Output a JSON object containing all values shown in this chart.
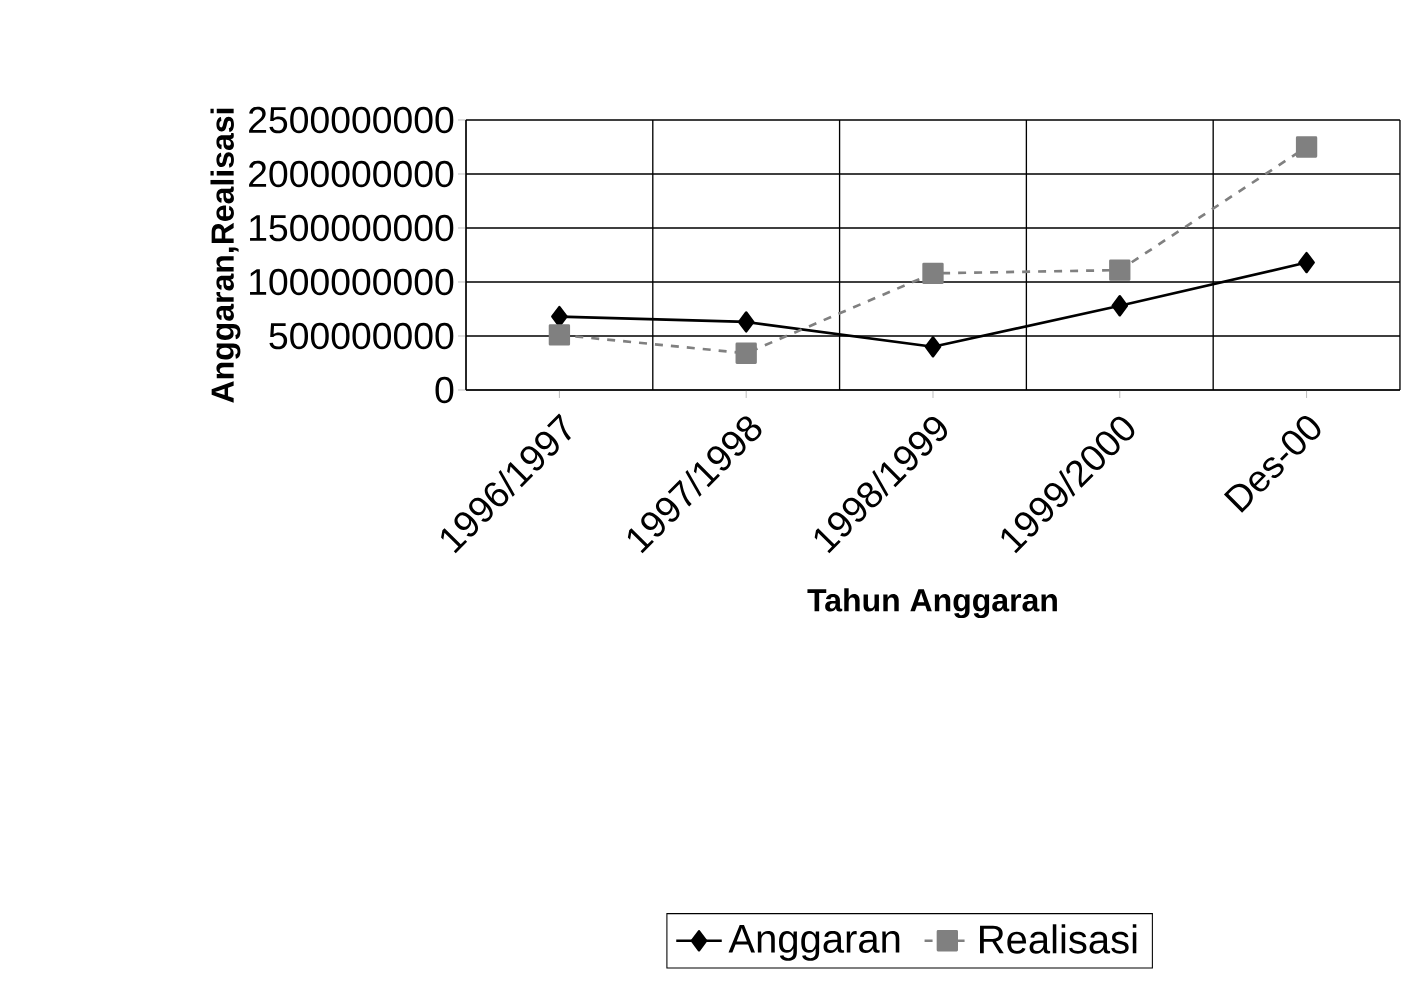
{
  "chart_data": {
    "type": "line",
    "xlabel": "Tahun Anggaran",
    "ylabel": "Anggaran,Realisasi",
    "categories": [
      "1996/1997",
      "1997/1998",
      "1998/1999",
      "1999/2000",
      "Des-00"
    ],
    "series": [
      {
        "name": "Anggaran",
        "color": "#000000",
        "marker": "diamond",
        "line_style": "solid",
        "values": [
          680000000,
          630000000,
          400000000,
          780000000,
          1180000000
        ]
      },
      {
        "name": "Realisasi",
        "color": "#808080",
        "marker": "square",
        "line_style": "dashed",
        "values": [
          510000000,
          340000000,
          1080000000,
          1110000000,
          2250000000
        ]
      }
    ],
    "ylim": [
      0,
      2500000000
    ],
    "yticks": [
      0,
      500000000,
      1000000000,
      1500000000,
      2000000000,
      2500000000
    ],
    "grid": true,
    "legend": "bottom"
  }
}
